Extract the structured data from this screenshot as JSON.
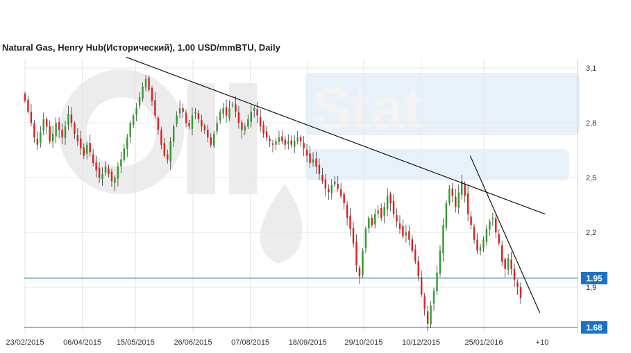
{
  "chart_data": {
    "type": "candlestick",
    "title": "Natural Gas, Henry Hub(Исторический), 1.00 USD/mmBTU, Daily",
    "x_tick_labels": [
      "23/02/2015",
      "06/04/2015",
      "15/05/2015",
      "26/06/2015",
      "07/08/2015",
      "18/09/2015",
      "29/10/2015",
      "10/12/2015",
      "25/01/2016",
      "+10"
    ],
    "y_tick_labels": [
      "3,1",
      "2,8",
      "2,5",
      "2,2",
      "1,9"
    ],
    "y_ticks": [
      3.1,
      2.8,
      2.5,
      2.2,
      1.9
    ],
    "ylim": [
      1.65,
      3.15
    ],
    "grid": true,
    "up_color": "#2e9e2e",
    "down_color": "#e02020",
    "level_color": "#1a73c7",
    "level_line_color": "#2a8f99",
    "horizontal_levels": [
      {
        "label": "1.95",
        "value": 1.95
      },
      {
        "label": "1.68",
        "value": 1.68
      }
    ],
    "trendlines": [
      {
        "from": {
          "x": "2015-05-08",
          "y": 3.16
        },
        "to": {
          "x": "2016-03-10",
          "y": 2.3
        }
      },
      {
        "from": {
          "x": "2016-01-15",
          "y": 2.62
        },
        "to": {
          "x": "2016-03-06",
          "y": 1.76
        }
      }
    ],
    "watermark_text": "Stat",
    "closes": [
      2.92,
      2.86,
      2.8,
      2.72,
      2.68,
      2.75,
      2.82,
      2.78,
      2.7,
      2.74,
      2.8,
      2.76,
      2.72,
      2.78,
      2.85,
      2.8,
      2.74,
      2.7,
      2.66,
      2.62,
      2.68,
      2.64,
      2.58,
      2.54,
      2.5,
      2.52,
      2.56,
      2.52,
      2.48,
      2.5,
      2.56,
      2.6,
      2.66,
      2.72,
      2.8,
      2.84,
      2.88,
      2.94,
      3.0,
      3.04,
      2.98,
      2.92,
      2.84,
      2.76,
      2.68,
      2.62,
      2.6,
      2.7,
      2.78,
      2.84,
      2.88,
      2.86,
      2.8,
      2.78,
      2.84,
      2.86,
      2.82,
      2.78,
      2.76,
      2.72,
      2.68,
      2.74,
      2.8,
      2.86,
      2.88,
      2.84,
      2.88,
      2.9,
      2.86,
      2.8,
      2.76,
      2.78,
      2.82,
      2.86,
      2.88,
      2.84,
      2.78,
      2.74,
      2.72,
      2.7,
      2.68,
      2.7,
      2.72,
      2.7,
      2.68,
      2.7,
      2.68,
      2.7,
      2.72,
      2.7,
      2.66,
      2.62,
      2.58,
      2.6,
      2.56,
      2.52,
      2.48,
      2.44,
      2.42,
      2.46,
      2.48,
      2.44,
      2.4,
      2.36,
      2.28,
      2.22,
      2.14,
      2.02,
      1.96,
      2.1,
      2.22,
      2.28,
      2.24,
      2.3,
      2.32,
      2.28,
      2.34,
      2.4,
      2.36,
      2.3,
      2.26,
      2.22,
      2.18,
      2.2,
      2.16,
      2.1,
      2.04,
      1.96,
      1.86,
      1.78,
      1.7,
      1.8,
      1.88,
      1.98,
      2.1,
      2.24,
      2.36,
      2.44,
      2.4,
      2.34,
      2.42,
      2.48,
      2.4,
      2.3,
      2.24,
      2.16,
      2.1,
      2.12,
      2.16,
      2.22,
      2.26,
      2.28,
      2.2,
      2.14,
      2.04,
      2.0,
      2.06,
      2.0,
      1.94,
      1.9,
      1.84
    ]
  }
}
